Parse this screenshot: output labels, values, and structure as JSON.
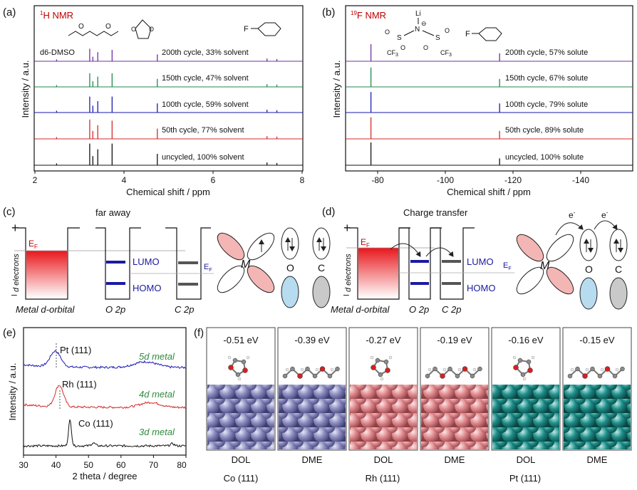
{
  "colors": {
    "purple": "#7030a0",
    "green": "#1d8a4f",
    "blue": "#1a1ab4",
    "red": "#d42a2a",
    "black": "#111111",
    "title_red": "#c00000",
    "mo_blue": "#1a1aa0",
    "gray": "#555555",
    "petal_pink": "#f4b6b4",
    "petal_blue": "#b8dcef",
    "petal_gray": "#c9c9c9",
    "co_atom": "#8c8cc0",
    "rh_atom": "#e08a8e",
    "pt_atom": "#1f8f8a",
    "metal_green": "#2e8b3e"
  },
  "panels": {
    "a": {
      "label": "(a)",
      "title_sup": "1",
      "title_main": "H NMR",
      "dmso": "d6-DMSO",
      "f_label": "F",
      "ylabel": "Intensity / a.u.",
      "xlabel": "Chemical shift / ppm",
      "xticks": [
        "2",
        "4",
        "6",
        "8"
      ],
      "traces": [
        "200th cycle, 33% solvent",
        "150th cycle, 47% solvent",
        "100th cycle, 59% solvent",
        "50th cycle, 77% solvent",
        "uncycled, 100% solvent"
      ]
    },
    "b": {
      "label": "(b)",
      "title_sup": "19",
      "title_main": "F NMR",
      "li": "Li",
      "n": "N",
      "minus": "⊖",
      "s1": "S",
      "s2": "S",
      "o": "O",
      "cf3": "CF3",
      "cf3_sub": "3",
      "f_label": "F",
      "ylabel": "Intensity / a.u.",
      "xlabel": "Chemical shift / ppm",
      "xticks": [
        "-80",
        "-100",
        "-120",
        "-140"
      ],
      "traces": [
        "200th cycle, 57% solute",
        "150th cycle, 67% solute",
        "100th cycle, 79% solute",
        "50th cycle, 89% solute",
        "uncycled, 100% solute"
      ]
    },
    "c": {
      "label": "(c)",
      "heading": "far away",
      "plus": "+",
      "minus": "–",
      "ef": "E",
      "ef_sub": "F",
      "d_electrons": "d electrons",
      "lumo": "LUMO",
      "homo": "HOMO",
      "metal_label": "Metal d-orbital",
      "o2p": "O 2p",
      "c2p": "C 2p",
      "m": "M",
      "o": "O",
      "c": "C"
    },
    "d": {
      "label": "(d)",
      "heading": "Charge transfer",
      "plus": "+",
      "minus": "–",
      "ef": "E",
      "ef_sub": "F",
      "d_electrons": "d electrons",
      "lumo": "LUMO",
      "homo": "HOMO",
      "metal_label": "Metal d-orbital",
      "o2p": "O 2p",
      "c2p": "C 2p",
      "m": "M",
      "o": "O",
      "c": "C",
      "e": "e",
      "e_sup": "-"
    },
    "e": {
      "label": "(e)",
      "ylabel": "Intensity / a.u.",
      "xlabel": "2 theta / degree",
      "xticks": [
        "30",
        "40",
        "50",
        "60",
        "70",
        "80"
      ],
      "peaks": [
        "Pt (111)",
        "Rh (111)",
        "Co (111)"
      ],
      "metals": [
        "5d metal",
        "4d metal",
        "3d metal"
      ]
    },
    "f": {
      "label": "(f)",
      "cells": [
        {
          "energy": "-0.51 eV",
          "mol": "DOL"
        },
        {
          "energy": "-0.39 eV",
          "mol": "DME"
        },
        {
          "energy": "-0.27 eV",
          "mol": "DOL"
        },
        {
          "energy": "-0.19 eV",
          "mol": "DME"
        },
        {
          "energy": "-0.16 eV",
          "mol": "DOL"
        },
        {
          "energy": "-0.15 eV",
          "mol": "DME"
        }
      ],
      "surfaces": [
        "Co (111)",
        "Rh (111)",
        "Pt (111)"
      ]
    }
  },
  "chart_data": [
    {
      "id": "a",
      "type": "line",
      "title": "1H NMR",
      "xlabel": "Chemical shift / ppm",
      "ylabel": "Intensity / a.u.",
      "xlim": [
        2,
        8
      ],
      "series": [
        {
          "name": "200th cycle, 33% solvent",
          "peaks": [
            [
              2.5,
              0.08
            ],
            [
              3.24,
              0.55
            ],
            [
              3.31,
              0.2
            ],
            [
              3.42,
              0.4
            ],
            [
              3.74,
              0.5
            ],
            [
              4.75,
              0.3
            ],
            [
              7.2,
              0.12
            ],
            [
              7.42,
              0.1
            ]
          ]
        },
        {
          "name": "150th cycle, 47% solvent",
          "peaks": [
            [
              2.5,
              0.08
            ],
            [
              3.24,
              0.6
            ],
            [
              3.31,
              0.25
            ],
            [
              3.42,
              0.45
            ],
            [
              3.74,
              0.6
            ],
            [
              4.75,
              0.35
            ],
            [
              7.2,
              0.12
            ],
            [
              7.42,
              0.1
            ]
          ]
        },
        {
          "name": "100th cycle, 59% solvent",
          "peaks": [
            [
              2.5,
              0.08
            ],
            [
              3.24,
              0.7
            ],
            [
              3.31,
              0.3
            ],
            [
              3.42,
              0.5
            ],
            [
              3.74,
              0.7
            ],
            [
              4.75,
              0.4
            ],
            [
              7.2,
              0.12
            ],
            [
              7.42,
              0.1
            ]
          ]
        },
        {
          "name": "50th cycle, 77% solvent",
          "peaks": [
            [
              2.5,
              0.08
            ],
            [
              3.24,
              0.85
            ],
            [
              3.31,
              0.35
            ],
            [
              3.42,
              0.6
            ],
            [
              3.74,
              0.8
            ],
            [
              4.75,
              0.45
            ],
            [
              7.2,
              0.12
            ],
            [
              7.42,
              0.1
            ]
          ]
        },
        {
          "name": "uncycled, 100% solvent",
          "peaks": [
            [
              2.5,
              0.08
            ],
            [
              3.24,
              0.95
            ],
            [
              3.31,
              0.4
            ],
            [
              3.42,
              0.7
            ],
            [
              3.74,
              0.95
            ],
            [
              4.75,
              0.5
            ],
            [
              7.2,
              0.12
            ],
            [
              7.42,
              0.1
            ]
          ]
        }
      ]
    },
    {
      "id": "b",
      "type": "line",
      "title": "19F NMR",
      "xlabel": "Chemical shift / ppm",
      "ylabel": "Intensity / a.u.",
      "xlim": [
        -73,
        -150
      ],
      "series": [
        {
          "name": "200th cycle, 57% solute",
          "peaks": [
            [
              -79.8,
              0.75
            ],
            [
              -114.3,
              0.35
            ]
          ]
        },
        {
          "name": "150th cycle, 67% solute",
          "peaks": [
            [
              -79.8,
              0.85
            ],
            [
              -114.3,
              0.35
            ]
          ]
        },
        {
          "name": "100th cycle, 79% solute",
          "peaks": [
            [
              -79.8,
              0.9
            ],
            [
              -114.3,
              0.4
            ]
          ]
        },
        {
          "name": "50th cycle, 89% solute",
          "peaks": [
            [
              -79.8,
              0.95
            ],
            [
              -114.3,
              0.35
            ]
          ]
        },
        {
          "name": "uncycled, 100% solute",
          "peaks": [
            [
              -79.8,
              1.0
            ],
            [
              -114.3,
              0.3
            ]
          ]
        }
      ]
    },
    {
      "id": "e",
      "type": "line",
      "xlabel": "2 theta / degree",
      "ylabel": "Intensity / a.u.",
      "xlim": [
        30,
        80
      ],
      "series": [
        {
          "name": "Pt 5d metal",
          "peak_2theta": 39.8,
          "broad_peak": 67.5
        },
        {
          "name": "Rh 4d metal",
          "peak_2theta": 41.0,
          "broad_peak": 69.0
        },
        {
          "name": "Co 3d metal",
          "peak_2theta": 44.3,
          "minor_peaks": [
            51.5,
            75.8
          ]
        }
      ]
    }
  ]
}
